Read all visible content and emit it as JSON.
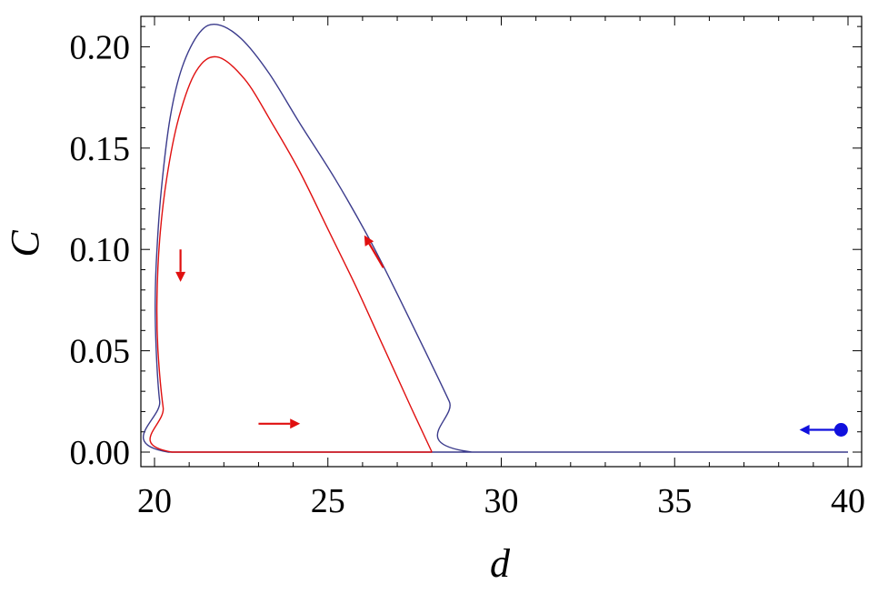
{
  "chart_data": {
    "type": "line",
    "xlabel": "d",
    "ylabel": "C",
    "xlim": [
      20,
      40
    ],
    "ylim": [
      0,
      0.215
    ],
    "x_ticks": [
      "20",
      "25",
      "30",
      "35",
      "40"
    ],
    "y_ticks": [
      "0.00",
      "0.05",
      "0.10",
      "0.15",
      "0.20"
    ],
    "x_tick_values": [
      20,
      25,
      30,
      35,
      40
    ],
    "y_tick_values": [
      0,
      0.05,
      0.1,
      0.15,
      0.2
    ],
    "grid": false,
    "series": [
      {
        "color": "#3b3b8c",
        "points": [
          [
            40.0,
            0.0
          ],
          [
            29.15,
            0.0
          ],
          [
            28.5,
            0.025
          ],
          [
            27.8,
            0.05
          ],
          [
            27.0,
            0.078
          ],
          [
            26.2,
            0.105
          ],
          [
            25.2,
            0.135
          ],
          [
            24.2,
            0.162
          ],
          [
            23.3,
            0.187
          ],
          [
            22.5,
            0.204
          ],
          [
            21.8,
            0.211
          ],
          [
            21.3,
            0.207
          ],
          [
            20.8,
            0.19
          ],
          [
            20.45,
            0.165
          ],
          [
            20.2,
            0.13
          ],
          [
            20.07,
            0.1
          ],
          [
            20.02,
            0.075
          ],
          [
            20.05,
            0.05
          ],
          [
            20.15,
            0.025
          ],
          [
            20.4,
            0.0
          ],
          [
            29.15,
            0.0
          ]
        ]
      },
      {
        "color": "#e01010",
        "points": [
          [
            28.0,
            0.0
          ],
          [
            27.4,
            0.022
          ],
          [
            26.6,
            0.052
          ],
          [
            25.8,
            0.082
          ],
          [
            25.0,
            0.11
          ],
          [
            24.2,
            0.138
          ],
          [
            23.4,
            0.162
          ],
          [
            22.6,
            0.184
          ],
          [
            21.8,
            0.195
          ],
          [
            21.2,
            0.188
          ],
          [
            20.7,
            0.165
          ],
          [
            20.35,
            0.135
          ],
          [
            20.15,
            0.105
          ],
          [
            20.07,
            0.075
          ],
          [
            20.1,
            0.05
          ],
          [
            20.25,
            0.022
          ],
          [
            20.5,
            0.0
          ],
          [
            28.0,
            0.0
          ]
        ]
      }
    ],
    "annotations": [
      {
        "kind": "arrow",
        "color": "#e01010",
        "from": [
          20.75,
          0.1
        ],
        "to": [
          20.75,
          0.084
        ]
      },
      {
        "kind": "arrow",
        "color": "#e01010",
        "from": [
          23.0,
          0.014
        ],
        "to": [
          24.2,
          0.014
        ]
      },
      {
        "kind": "arrow",
        "color": "#e01010",
        "from": [
          26.6,
          0.091
        ],
        "to": [
          26.05,
          0.107
        ]
      },
      {
        "kind": "arrow",
        "color": "#1010dd",
        "from": [
          39.8,
          0.011
        ],
        "to": [
          38.6,
          0.011
        ]
      },
      {
        "kind": "dot",
        "color": "#1010dd",
        "at": [
          39.8,
          0.011
        ]
      }
    ]
  }
}
